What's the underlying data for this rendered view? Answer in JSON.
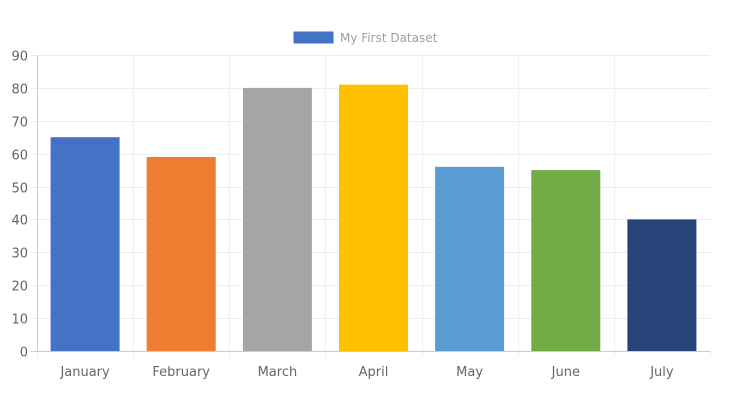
{
  "chart_data": {
    "type": "bar",
    "categories": [
      "January",
      "February",
      "March",
      "April",
      "May",
      "June",
      "July"
    ],
    "series": [
      {
        "name": "My First Dataset",
        "values": [
          65,
          59,
          80,
          81,
          56,
          55,
          40
        ]
      }
    ],
    "bar_colors": [
      "#4472c4",
      "#ed7d31",
      "#a5a5a5",
      "#ffc000",
      "#5b9bd5",
      "#70ad47",
      "#264478"
    ],
    "legend_color": "#4472c4",
    "grid_color": "#eeeeee",
    "axis_color": "#cccccc",
    "ylim": [
      0,
      90
    ],
    "y_ticks": [
      0,
      10,
      20,
      30,
      40,
      50,
      60,
      70,
      80,
      90
    ],
    "grid": true,
    "legend_position": "top-center",
    "title": "",
    "xlabel": "",
    "ylabel": ""
  }
}
